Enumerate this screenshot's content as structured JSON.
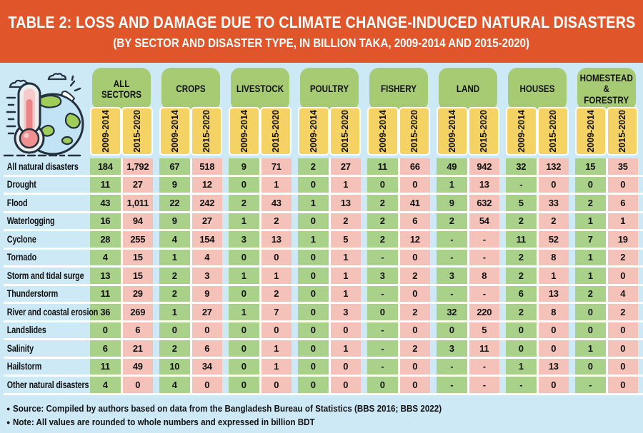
{
  "banner": {
    "title": "TABLE 2: LOSS AND DAMAGE DUE TO CLIMATE  CHANGE-INDUCED NATURAL DISASTERS",
    "subtitle": "(BY SECTOR AND DISASTER TYPE, IN BILLION TAKA, 2009-2014 AND 2015-2020)"
  },
  "colors": {
    "banner_orange": "#E0552A",
    "page_blue": "#CDE9F6",
    "group_green": "#A7CB72",
    "period_yellow": "#F5D264",
    "cell_green": "#AAD189",
    "cell_pink": "#F5C2BA"
  },
  "icons": {
    "corner_illustration": "thermometer-globe-climate-illustration"
  },
  "table": {
    "groups": [
      "ALL SECTORS",
      "CROPS",
      "LIVESTOCK",
      "POULTRY",
      "FISHERY",
      "LAND",
      "HOUSES",
      "HOMESTEAD & FORESTRY"
    ],
    "periods": [
      "2009-2014",
      "2015-2020"
    ],
    "rows": [
      {
        "label": "All natural disasters",
        "values": [
          "184",
          "1,792",
          "67",
          "518",
          "9",
          "71",
          "2",
          "27",
          "11",
          "66",
          "49",
          "942",
          "32",
          "132",
          "15",
          "35"
        ]
      },
      {
        "label": "Drought",
        "values": [
          "11",
          "27",
          "9",
          "12",
          "0",
          "1",
          "0",
          "1",
          "0",
          "0",
          "1",
          "13",
          "-",
          "0",
          "0",
          "0"
        ]
      },
      {
        "label": "Flood",
        "values": [
          "43",
          "1,011",
          "22",
          "242",
          "2",
          "43",
          "1",
          "13",
          "2",
          "41",
          "9",
          "632",
          "5",
          "33",
          "2",
          "6"
        ]
      },
      {
        "label": "Waterlogging",
        "values": [
          "16",
          "94",
          "9",
          "27",
          "1",
          "2",
          "0",
          "2",
          "2",
          "6",
          "2",
          "54",
          "2",
          "2",
          "1",
          "1"
        ]
      },
      {
        "label": "Cyclone",
        "values": [
          "28",
          "255",
          "4",
          "154",
          "3",
          "13",
          "1",
          "5",
          "2",
          "12",
          "-",
          "-",
          "11",
          "52",
          "7",
          "19"
        ]
      },
      {
        "label": "Tornado",
        "values": [
          "4",
          "15",
          "1",
          "4",
          "0",
          "0",
          "0",
          "1",
          "-",
          "0",
          "-",
          "-",
          "2",
          "8",
          "1",
          "2"
        ]
      },
      {
        "label": "Storm and tidal surge",
        "values": [
          "13",
          "15",
          "2",
          "3",
          "1",
          "1",
          "0",
          "1",
          "3",
          "2",
          "3",
          "8",
          "2",
          "1",
          "1",
          "0"
        ]
      },
      {
        "label": "Thunderstorm",
        "values": [
          "11",
          "29",
          "2",
          "9",
          "0",
          "2",
          "0",
          "1",
          "-",
          "0",
          "-",
          "-",
          "6",
          "13",
          "2",
          "4"
        ]
      },
      {
        "label": "River and coastal erosion",
        "values": [
          "36",
          "269",
          "1",
          "27",
          "1",
          "7",
          "0",
          "3",
          "0",
          "2",
          "32",
          "220",
          "2",
          "8",
          "0",
          "2"
        ]
      },
      {
        "label": "Landslides",
        "values": [
          "0",
          "6",
          "0",
          "0",
          "0",
          "0",
          "0",
          "0",
          "-",
          "0",
          "0",
          "5",
          "0",
          "0",
          "0",
          "0"
        ]
      },
      {
        "label": "Salinity",
        "values": [
          "6",
          "21",
          "2",
          "6",
          "0",
          "1",
          "0",
          "1",
          "-",
          "2",
          "3",
          "11",
          "0",
          "0",
          "1",
          "0"
        ]
      },
      {
        "label": "Hailstorm",
        "values": [
          "11",
          "49",
          "10",
          "34",
          "0",
          "1",
          "0",
          "0",
          "-",
          "0",
          "-",
          "-",
          "1",
          "13",
          "0",
          "0"
        ]
      },
      {
        "label": "Other natural disasters",
        "values": [
          "4",
          "0",
          "4",
          "0",
          "0",
          "0",
          "0",
          "0",
          "0",
          "0",
          "-",
          "-",
          "-",
          "0",
          "-",
          "0"
        ]
      }
    ]
  },
  "footer": {
    "source": "Source: Compiled by authors based on data from the Bangladesh Bureau of Statistics (BBS 2016; BBS 2022)",
    "note": "Note: All values are rounded to whole numbers and expressed in billion BDT"
  }
}
